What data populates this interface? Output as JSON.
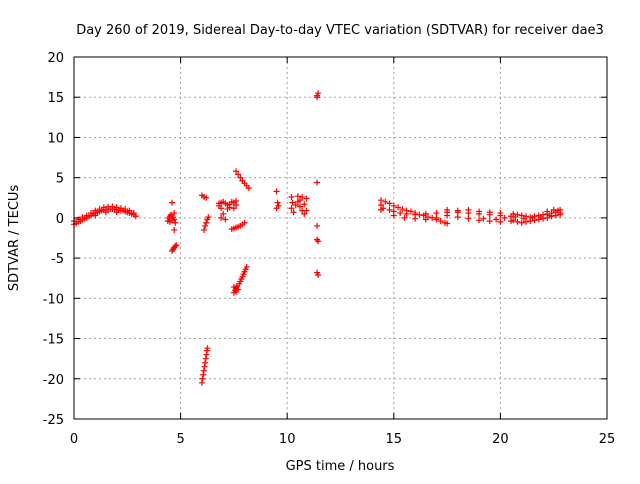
{
  "chart_data": {
    "type": "scatter",
    "title": "Day 260 of 2019, Sidereal Day-to-day VTEC variation (SDTVAR) for receiver dae3",
    "xlabel": "GPS time / hours",
    "ylabel": "SDTVAR / TECUs",
    "xlim": [
      0,
      25
    ],
    "ylim": [
      -25,
      20
    ],
    "x_ticks": [
      0,
      5,
      10,
      15,
      20,
      25
    ],
    "y_ticks": [
      -25,
      -20,
      -15,
      -10,
      -5,
      0,
      5,
      10,
      15,
      20
    ],
    "grid": true,
    "marker": "+",
    "series_color": "#ff0000",
    "series": [
      {
        "name": "SDTVAR",
        "points": [
          [
            0.0,
            -0.8
          ],
          [
            0.1,
            -0.7
          ],
          [
            0.2,
            -0.5
          ],
          [
            0.3,
            -0.4
          ],
          [
            0.4,
            -0.2
          ],
          [
            0.5,
            -0.1
          ],
          [
            0.6,
            0.0
          ],
          [
            0.7,
            0.2
          ],
          [
            0.8,
            0.3
          ],
          [
            0.9,
            0.5
          ],
          [
            1.0,
            0.6
          ],
          [
            1.1,
            0.7
          ],
          [
            1.2,
            0.8
          ],
          [
            1.3,
            0.9
          ],
          [
            1.4,
            1.0
          ],
          [
            1.5,
            1.0
          ],
          [
            1.6,
            1.1
          ],
          [
            1.7,
            1.1
          ],
          [
            1.8,
            1.1
          ],
          [
            1.9,
            1.1
          ],
          [
            2.0,
            1.0
          ],
          [
            2.1,
            1.0
          ],
          [
            2.2,
            0.9
          ],
          [
            2.3,
            0.9
          ],
          [
            2.4,
            0.8
          ],
          [
            2.5,
            0.7
          ],
          [
            2.6,
            0.6
          ],
          [
            2.7,
            0.5
          ],
          [
            2.8,
            0.4
          ],
          [
            2.9,
            0.2
          ],
          [
            0.0,
            -0.4
          ],
          [
            0.2,
            -0.2
          ],
          [
            0.4,
            0.1
          ],
          [
            0.6,
            0.3
          ],
          [
            0.8,
            0.6
          ],
          [
            1.0,
            0.9
          ],
          [
            1.2,
            1.1
          ],
          [
            1.4,
            1.3
          ],
          [
            1.6,
            1.4
          ],
          [
            1.8,
            1.4
          ],
          [
            2.0,
            1.3
          ],
          [
            2.2,
            1.2
          ],
          [
            2.4,
            1.1
          ],
          [
            2.6,
            0.9
          ],
          [
            2.8,
            0.6
          ],
          [
            1.0,
            0.3
          ],
          [
            1.5,
            0.7
          ],
          [
            2.0,
            0.7
          ],
          [
            4.4,
            -0.4
          ],
          [
            4.45,
            0.0
          ],
          [
            4.5,
            0.2
          ],
          [
            4.5,
            -0.5
          ],
          [
            4.55,
            0.4
          ],
          [
            4.6,
            -0.3
          ],
          [
            4.65,
            0.1
          ],
          [
            4.7,
            -0.2
          ],
          [
            4.7,
            0.6
          ],
          [
            4.75,
            -0.6
          ],
          [
            4.6,
            1.9
          ],
          [
            4.7,
            -1.5
          ],
          [
            4.6,
            -4.1
          ],
          [
            4.65,
            -3.9
          ],
          [
            4.7,
            -3.7
          ],
          [
            4.75,
            -3.5
          ],
          [
            4.8,
            -3.4
          ],
          [
            6.0,
            2.8
          ],
          [
            6.1,
            2.6
          ],
          [
            6.2,
            2.5
          ],
          [
            6.1,
            -1.5
          ],
          [
            6.15,
            -1.0
          ],
          [
            6.2,
            -0.6
          ],
          [
            6.25,
            -0.2
          ],
          [
            6.3,
            0.1
          ],
          [
            6.0,
            -20.5
          ],
          [
            6.03,
            -20.0
          ],
          [
            6.06,
            -19.5
          ],
          [
            6.09,
            -19.0
          ],
          [
            6.12,
            -18.5
          ],
          [
            6.15,
            -18.0
          ],
          [
            6.18,
            -17.5
          ],
          [
            6.21,
            -17.0
          ],
          [
            6.24,
            -16.5
          ],
          [
            6.26,
            -16.2
          ],
          [
            6.8,
            1.5
          ],
          [
            6.9,
            1.9
          ],
          [
            7.0,
            2.0
          ],
          [
            7.1,
            1.8
          ],
          [
            7.2,
            1.6
          ],
          [
            7.3,
            1.7
          ],
          [
            7.4,
            2.0
          ],
          [
            7.5,
            1.9
          ],
          [
            7.6,
            1.6
          ],
          [
            6.9,
            1.2
          ],
          [
            7.2,
            1.1
          ],
          [
            7.5,
            1.2
          ],
          [
            7.0,
            0.5
          ],
          [
            6.9,
            0.0
          ],
          [
            7.1,
            -0.2
          ],
          [
            7.3,
            1.3
          ],
          [
            6.8,
            1.8
          ],
          [
            7.6,
            2.1
          ],
          [
            7.4,
            -1.4
          ],
          [
            7.5,
            -1.3
          ],
          [
            7.6,
            -1.2
          ],
          [
            7.7,
            -1.1
          ],
          [
            7.8,
            -1.0
          ],
          [
            7.9,
            -0.8
          ],
          [
            8.0,
            -0.6
          ],
          [
            7.5,
            -9.3
          ],
          [
            7.55,
            -9.0
          ],
          [
            7.6,
            -8.7
          ],
          [
            7.65,
            -8.5
          ],
          [
            7.7,
            -8.9
          ],
          [
            7.75,
            -8.2
          ],
          [
            7.8,
            -7.9
          ],
          [
            7.85,
            -7.6
          ],
          [
            7.9,
            -7.3
          ],
          [
            7.95,
            -7.0
          ],
          [
            8.0,
            -6.7
          ],
          [
            8.05,
            -6.4
          ],
          [
            8.1,
            -6.1
          ],
          [
            7.5,
            -8.6
          ],
          [
            7.6,
            -9.2
          ],
          [
            7.6,
            5.8
          ],
          [
            7.7,
            5.4
          ],
          [
            7.8,
            5.0
          ],
          [
            7.9,
            4.6
          ],
          [
            8.0,
            4.3
          ],
          [
            8.1,
            4.0
          ],
          [
            8.2,
            3.7
          ],
          [
            9.5,
            3.3
          ],
          [
            9.55,
            1.9
          ],
          [
            9.6,
            1.5
          ],
          [
            9.5,
            1.2
          ],
          [
            10.2,
            2.6
          ],
          [
            10.25,
            1.9
          ],
          [
            10.2,
            1.2
          ],
          [
            10.3,
            0.7
          ],
          [
            10.4,
            1.6
          ],
          [
            10.5,
            2.0
          ],
          [
            10.6,
            1.4
          ],
          [
            10.7,
            0.9
          ],
          [
            10.8,
            1.7
          ],
          [
            10.9,
            2.4
          ],
          [
            10.7,
            2.6
          ],
          [
            10.5,
            2.7
          ],
          [
            10.8,
            0.5
          ],
          [
            10.9,
            0.9
          ],
          [
            10.6,
            2.2
          ],
          [
            11.4,
            15.2
          ],
          [
            11.45,
            15.5
          ],
          [
            11.4,
            15.0
          ],
          [
            11.4,
            4.4
          ],
          [
            11.4,
            -1.0
          ],
          [
            11.4,
            -2.7
          ],
          [
            11.45,
            -2.9
          ],
          [
            11.4,
            -6.8
          ],
          [
            11.45,
            -7.1
          ],
          [
            14.4,
            2.2
          ],
          [
            14.4,
            1.6
          ],
          [
            14.4,
            1.0
          ],
          [
            14.6,
            2.0
          ],
          [
            14.8,
            1.8
          ],
          [
            15.0,
            1.5
          ],
          [
            15.2,
            1.3
          ],
          [
            15.4,
            1.1
          ],
          [
            15.6,
            0.9
          ],
          [
            15.8,
            0.8
          ],
          [
            16.0,
            0.6
          ],
          [
            16.2,
            0.4
          ],
          [
            16.4,
            0.3
          ],
          [
            16.6,
            0.1
          ],
          [
            16.8,
            0.0
          ],
          [
            17.0,
            -0.2
          ],
          [
            17.2,
            -0.4
          ],
          [
            17.4,
            -0.6
          ],
          [
            17.5,
            -0.7
          ],
          [
            14.5,
            1.2
          ],
          [
            14.8,
            1.0
          ],
          [
            15.0,
            0.8
          ],
          [
            15.3,
            0.6
          ],
          [
            15.6,
            0.5
          ],
          [
            16.0,
            0.4
          ],
          [
            16.5,
            0.5
          ],
          [
            17.0,
            0.6
          ],
          [
            17.5,
            0.7
          ],
          [
            18.0,
            0.7
          ],
          [
            18.5,
            0.6
          ],
          [
            19.0,
            0.5
          ],
          [
            19.5,
            0.4
          ],
          [
            20.0,
            0.3
          ],
          [
            20.5,
            0.2
          ],
          [
            15.0,
            0.3
          ],
          [
            15.5,
            0.0
          ],
          [
            16.0,
            -0.1
          ],
          [
            16.5,
            -0.2
          ],
          [
            17.0,
            0.0
          ],
          [
            17.5,
            0.3
          ],
          [
            18.0,
            0.1
          ],
          [
            18.5,
            -0.1
          ],
          [
            19.0,
            -0.3
          ],
          [
            19.5,
            -0.4
          ],
          [
            20.0,
            -0.5
          ],
          [
            20.5,
            -0.4
          ],
          [
            17.5,
            1.0
          ],
          [
            18.0,
            0.9
          ],
          [
            18.5,
            1.0
          ],
          [
            19.0,
            0.8
          ],
          [
            19.5,
            0.7
          ],
          [
            20.0,
            0.6
          ],
          [
            19.2,
            -0.1
          ],
          [
            19.8,
            -0.2
          ],
          [
            20.2,
            0.0
          ],
          [
            20.6,
            0.5
          ],
          [
            20.8,
            0.4
          ],
          [
            21.0,
            0.3
          ],
          [
            21.2,
            0.2
          ],
          [
            21.4,
            0.1
          ],
          [
            21.6,
            0.2
          ],
          [
            21.8,
            0.3
          ],
          [
            22.0,
            0.4
          ],
          [
            22.2,
            0.5
          ],
          [
            22.4,
            0.6
          ],
          [
            22.6,
            0.7
          ],
          [
            22.8,
            0.6
          ],
          [
            20.6,
            -0.3
          ],
          [
            20.8,
            -0.5
          ],
          [
            21.0,
            -0.6
          ],
          [
            21.2,
            -0.5
          ],
          [
            21.4,
            -0.4
          ],
          [
            21.6,
            -0.3
          ],
          [
            21.8,
            -0.2
          ],
          [
            22.0,
            -0.1
          ],
          [
            22.2,
            0.0
          ],
          [
            22.4,
            0.2
          ],
          [
            22.6,
            0.3
          ],
          [
            22.8,
            0.4
          ],
          [
            20.7,
            0.1
          ],
          [
            21.1,
            -0.1
          ],
          [
            21.5,
            0.0
          ],
          [
            21.9,
            0.1
          ],
          [
            22.3,
            0.3
          ],
          [
            22.7,
            0.9
          ],
          [
            22.8,
            1.0
          ],
          [
            22.5,
            1.0
          ],
          [
            22.2,
            0.8
          ]
        ]
      }
    ]
  }
}
